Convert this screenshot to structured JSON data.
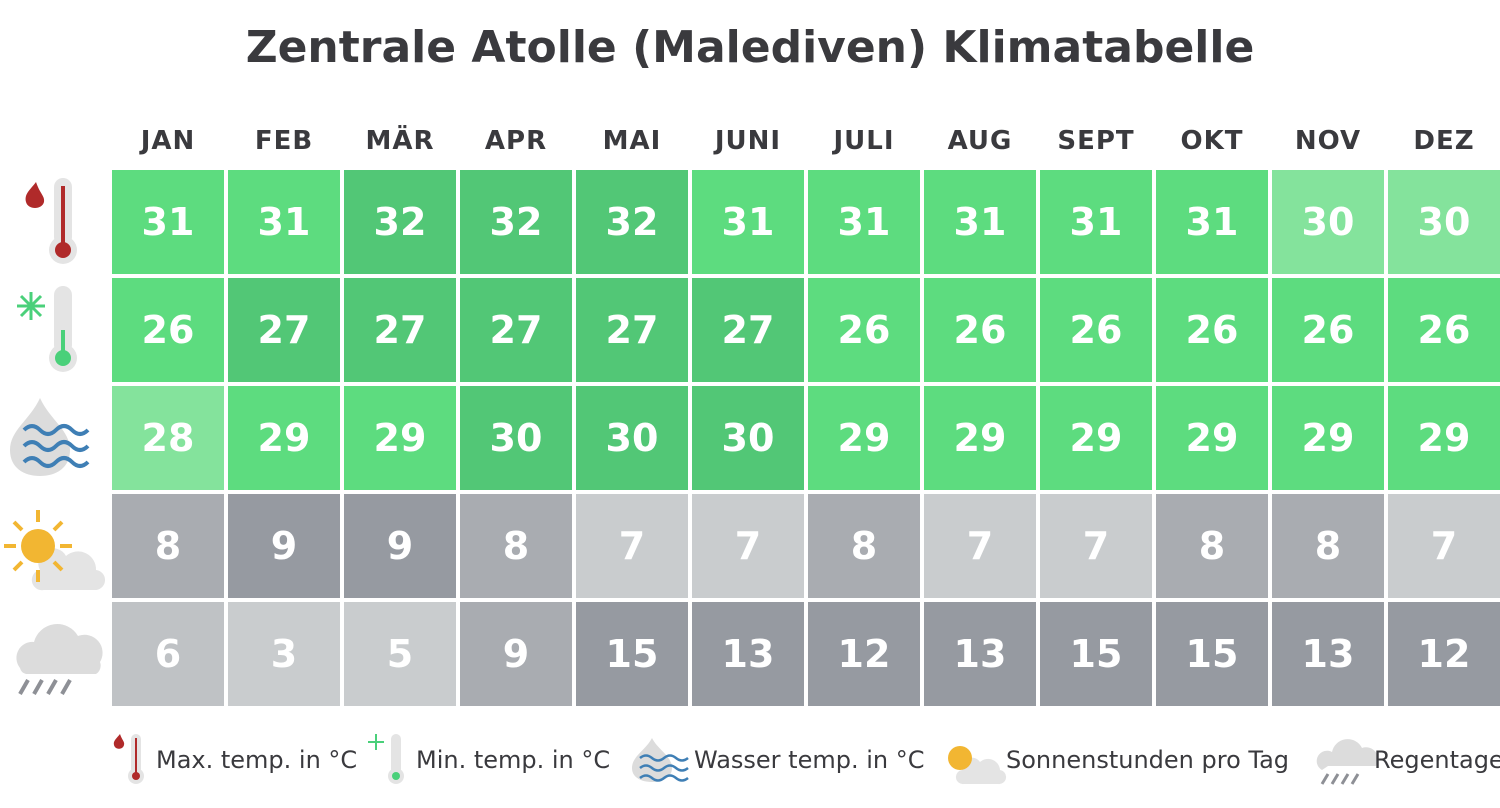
{
  "header": {
    "title": "Zentrale Atolle (Malediven) Klimatabelle"
  },
  "table": {
    "columns": [
      "JAN",
      "FEB",
      "MÄR",
      "APR",
      "MAI",
      "JUNI",
      "JULI",
      "AUG",
      "SEPT",
      "OKT",
      "NOV",
      "DEZ"
    ],
    "rows": [
      [
        31,
        31,
        32,
        32,
        32,
        31,
        31,
        31,
        31,
        31,
        30,
        30
      ],
      [
        26,
        27,
        27,
        27,
        27,
        27,
        26,
        26,
        26,
        26,
        26,
        26
      ],
      [
        28,
        29,
        29,
        30,
        30,
        30,
        29,
        29,
        29,
        29,
        29,
        29
      ],
      [
        8,
        9,
        9,
        8,
        7,
        7,
        8,
        7,
        7,
        8,
        8,
        7
      ],
      [
        6,
        3,
        5,
        9,
        15,
        13,
        12,
        13,
        15,
        15,
        13,
        12
      ]
    ]
  },
  "legend": [
    "Max. temp. in °C",
    "Min. temp. in °C",
    "Wasser temp. in °C",
    "Sonnenstunden pro Tag",
    "Regentage"
  ],
  "colors": {
    "green": [
      "#84e39c",
      "#5ddc7f",
      "#52c776"
    ],
    "gray": [
      "#c9ccce",
      "#bfc2c5",
      "#a9acb1",
      "#969aa1"
    ]
  }
}
